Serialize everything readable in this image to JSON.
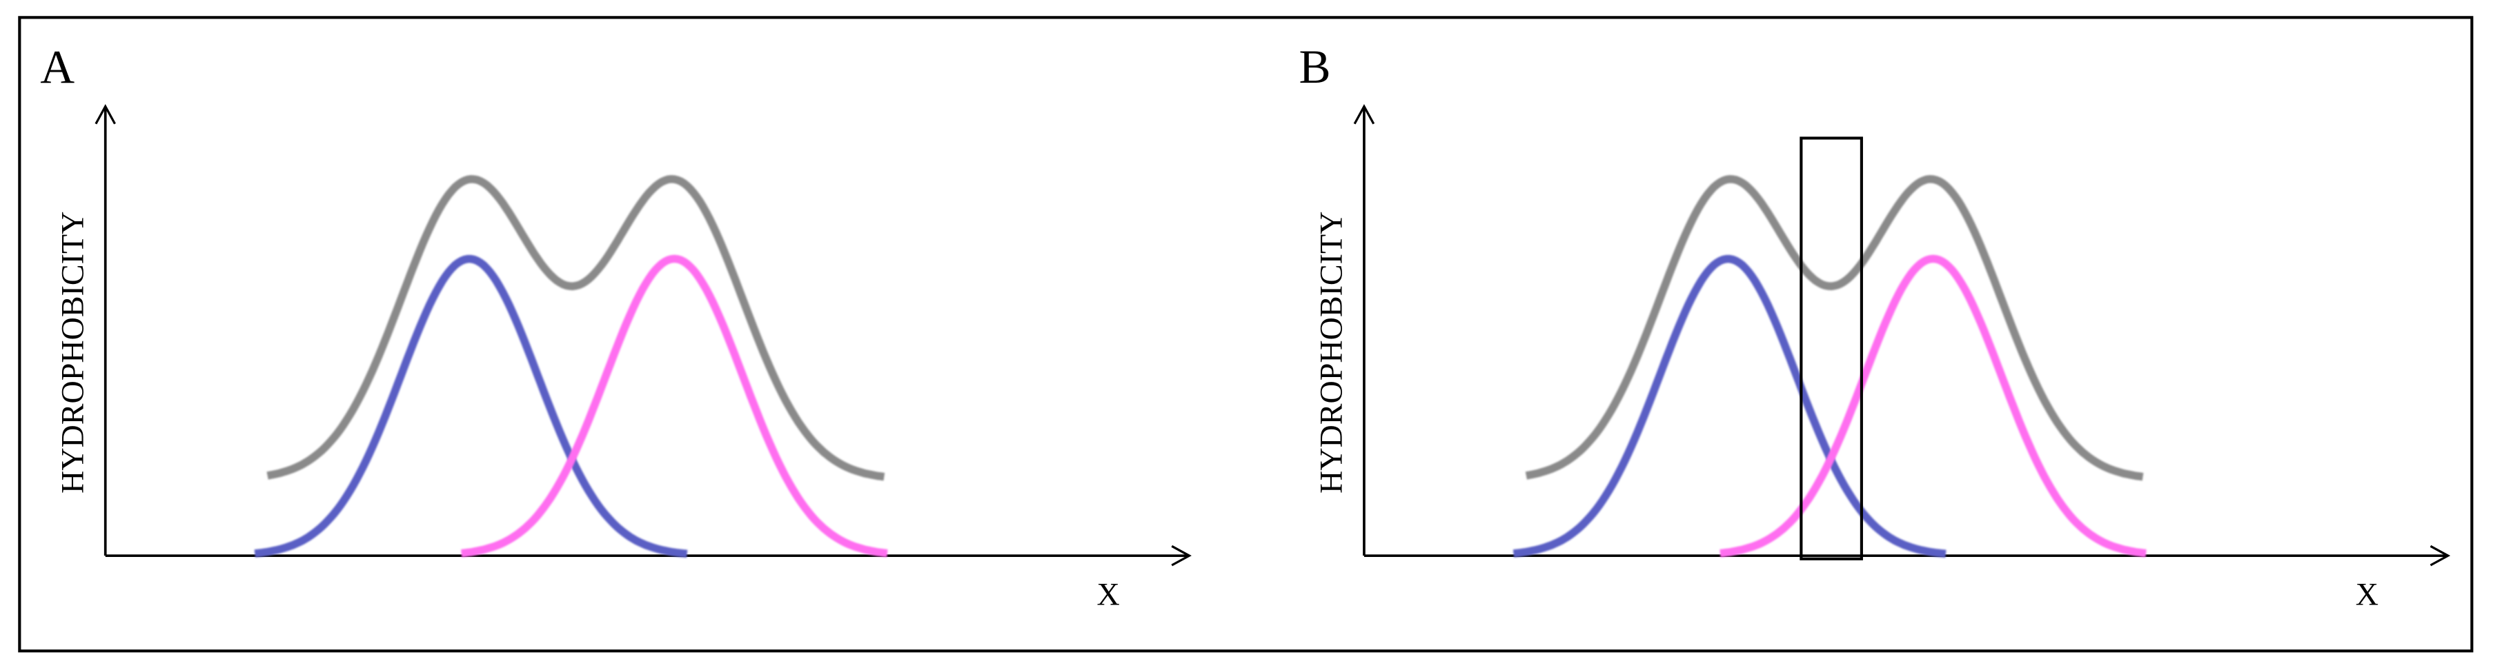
{
  "panels": [
    {
      "label": "A",
      "y_axis_label": "HYDROPHOBICITY",
      "x_axis_label": "X"
    },
    {
      "label": "B",
      "y_axis_label": "HYDROPHOBICITY",
      "x_axis_label": "X"
    }
  ]
}
